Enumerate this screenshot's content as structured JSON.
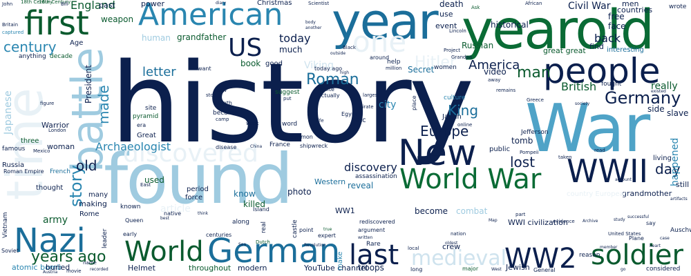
{
  "palette": {
    "navy": "#0d2b5e",
    "dark_navy": "#0b1f4d",
    "teal": "#2a86b0",
    "light_blue": "#9fcbe0",
    "pale_blue": "#e8f1f6",
    "green": "#0d6b3a",
    "dark_green": "#0a5a2e",
    "light_green": "#2e8b57"
  },
  "words": [
    {
      "text": "history"
    },
    {
      "text": "War"
    },
    {
      "text": "found"
    },
    {
      "text": "year"
    },
    {
      "text": "yearold"
    },
    {
      "text": "American"
    },
    {
      "text": "people"
    },
    {
      "text": "first"
    },
    {
      "text": "battle"
    },
    {
      "text": "New"
    },
    {
      "text": "WWII"
    },
    {
      "text": "World War"
    },
    {
      "text": "German"
    },
    {
      "text": "World"
    },
    {
      "text": "Nazi"
    },
    {
      "text": "WW2"
    },
    {
      "text": "soldier"
    },
    {
      "text": "last"
    },
    {
      "text": "Germany"
    },
    {
      "text": "discovered"
    },
    {
      "text": "medieval"
    },
    {
      "text": "US"
    },
    {
      "text": "one"
    },
    {
      "text": "Roman"
    },
    {
      "text": "Europe"
    },
    {
      "text": "King"
    },
    {
      "text": "British"
    },
    {
      "text": "America"
    },
    {
      "text": "man"
    },
    {
      "text": "Hitler"
    },
    {
      "text": "century"
    },
    {
      "text": "story"
    },
    {
      "text": "made"
    },
    {
      "text": "years ago"
    },
    {
      "text": "letter"
    },
    {
      "text": "Archaeologist"
    },
    {
      "text": "discovery"
    },
    {
      "text": "Civil War"
    },
    {
      "text": "England"
    },
    {
      "text": "day"
    },
    {
      "text": "old"
    },
    {
      "text": "lost"
    },
    {
      "text": "happened"
    },
    {
      "text": "back"
    },
    {
      "text": "army"
    },
    {
      "text": "know"
    },
    {
      "text": "killed"
    },
    {
      "text": "used"
    },
    {
      "text": "today"
    },
    {
      "text": "much"
    },
    {
      "text": "book"
    },
    {
      "text": "time"
    },
    {
      "text": "President"
    },
    {
      "text": "Japanese"
    },
    {
      "text": "Viking"
    },
    {
      "text": "historical"
    },
    {
      "text": "grandfather"
    },
    {
      "text": "human"
    },
    {
      "text": "city"
    },
    {
      "text": "reveal"
    },
    {
      "text": "photo"
    },
    {
      "text": "period"
    },
    {
      "text": "force"
    },
    {
      "text": "tomb"
    },
    {
      "text": "Western"
    },
    {
      "text": "WW1"
    },
    {
      "text": "become"
    },
    {
      "text": "combat"
    },
    {
      "text": "WWI civilization"
    },
    {
      "text": "Secret"
    },
    {
      "text": "face"
    },
    {
      "text": "free"
    },
    {
      "text": "men"
    },
    {
      "text": "countries"
    },
    {
      "text": "wrote"
    },
    {
      "text": "Russian"
    },
    {
      "text": "video"
    },
    {
      "text": "great great"
    },
    {
      "text": "interesting"
    },
    {
      "text": "find"
    },
    {
      "text": "really"
    },
    {
      "text": "fought"
    },
    {
      "text": "side"
    },
    {
      "text": "slave"
    },
    {
      "text": "living"
    },
    {
      "text": "still"
    },
    {
      "text": "grandmother"
    },
    {
      "text": "country European"
    },
    {
      "text": "past"
    },
    {
      "text": "power"
    },
    {
      "text": "death"
    },
    {
      "text": "use"
    },
    {
      "text": "event"
    },
    {
      "text": "18th Century"
    },
    {
      "text": "16th Century"
    },
    {
      "text": "Bill"
    },
    {
      "text": "Age"
    },
    {
      "text": "weapon"
    },
    {
      "text": "anything"
    },
    {
      "text": "decade"
    },
    {
      "text": "Britain"
    },
    {
      "text": "John"
    },
    {
      "text": "captured"
    },
    {
      "text": "Warrior"
    },
    {
      "text": "woman"
    },
    {
      "text": "three"
    },
    {
      "text": "famous"
    },
    {
      "text": "Russia"
    },
    {
      "text": "Roman Empire"
    },
    {
      "text": "French"
    },
    {
      "text": "thought"
    },
    {
      "text": "making"
    },
    {
      "text": "many"
    },
    {
      "text": "Rome"
    },
    {
      "text": "known"
    },
    {
      "text": "Queen"
    },
    {
      "text": "early"
    },
    {
      "text": "centuries"
    },
    {
      "text": "Helmet"
    },
    {
      "text": "throughout"
    },
    {
      "text": "modern"
    },
    {
      "text": "YouTube channel"
    },
    {
      "text": "troops"
    },
    {
      "text": "Rare"
    },
    {
      "text": "long"
    },
    {
      "text": "crew"
    },
    {
      "text": "atomic bomb"
    },
    {
      "text": "buried"
    },
    {
      "text": "leader"
    },
    {
      "text": "name"
    },
    {
      "text": "movie"
    },
    {
      "text": "recorded"
    },
    {
      "text": "Austria"
    },
    {
      "text": "Soviet"
    },
    {
      "text": "Vietnam"
    },
    {
      "text": "local"
    },
    {
      "text": "make"
    },
    {
      "text": "Jewish"
    },
    {
      "text": "major"
    },
    {
      "text": "West"
    },
    {
      "text": "General"
    },
    {
      "text": "reason"
    },
    {
      "text": "considered"
    },
    {
      "text": "go"
    },
    {
      "text": "Plane"
    },
    {
      "text": "Auschwitz"
    },
    {
      "text": "say"
    },
    {
      "text": "case"
    },
    {
      "text": "era"
    },
    {
      "text": "Great"
    },
    {
      "text": "pyramid"
    },
    {
      "text": "public"
    },
    {
      "text": "Japan"
    },
    {
      "text": "etc"
    },
    {
      "text": "Egypt"
    },
    {
      "text": "pirate"
    },
    {
      "text": "place"
    },
    {
      "text": "largest"
    },
    {
      "text": "actually"
    },
    {
      "text": "white"
    },
    {
      "text": "suggest"
    },
    {
      "text": "put"
    },
    {
      "text": "show"
    },
    {
      "text": "became"
    },
    {
      "text": "camp"
    },
    {
      "text": "month"
    },
    {
      "text": "stop"
    },
    {
      "text": "site"
    },
    {
      "text": "want"
    },
    {
      "text": "good"
    },
    {
      "text": "today ago"
    },
    {
      "text": "around"
    },
    {
      "text": "women"
    },
    {
      "text": "help"
    },
    {
      "text": "million"
    },
    {
      "text": "high"
    },
    {
      "text": "outside"
    },
    {
      "text": "Black"
    },
    {
      "text": "Lincoln"
    },
    {
      "text": "Project"
    },
    {
      "text": "Grandpa"
    },
    {
      "text": "culture"
    },
    {
      "text": "away"
    },
    {
      "text": "remains"
    },
    {
      "text": "Greece"
    },
    {
      "text": "society"
    },
    {
      "text": "figure"
    },
    {
      "text": "London"
    },
    {
      "text": "Mexico"
    },
    {
      "text": "disease"
    },
    {
      "text": "China"
    },
    {
      "text": "France"
    },
    {
      "text": "shipwreck"
    },
    {
      "text": "common"
    },
    {
      "text": "assassination"
    },
    {
      "text": "word"
    },
    {
      "text": "week"
    },
    {
      "text": "life"
    },
    {
      "text": "online"
    },
    {
      "text": "Jefferson"
    },
    {
      "text": "Pompeii"
    },
    {
      "text": "read"
    },
    {
      "text": "taken"
    },
    {
      "text": "East"
    },
    {
      "text": "along"
    },
    {
      "text": "Island"
    },
    {
      "text": "real"
    },
    {
      "text": "castle"
    },
    {
      "text": "point"
    },
    {
      "text": "true"
    },
    {
      "text": "expert"
    },
    {
      "text": "Dutch"
    },
    {
      "text": "Sea"
    },
    {
      "text": "Revolution"
    },
    {
      "text": "argument"
    },
    {
      "text": "rediscovered"
    },
    {
      "text": "written"
    },
    {
      "text": "nation"
    },
    {
      "text": "oldest"
    },
    {
      "text": "part"
    },
    {
      "text": "Map"
    },
    {
      "text": "evidence"
    },
    {
      "text": "Archive"
    },
    {
      "text": "study"
    },
    {
      "text": "United States"
    },
    {
      "text": "member"
    },
    {
      "text": "heart"
    },
    {
      "text": "successful"
    },
    {
      "text": "artifacts"
    },
    {
      "text": "article"
    },
    {
      "text": "native"
    },
    {
      "text": "think"
    },
    {
      "text": "best"
    },
    {
      "text": "Ask"
    },
    {
      "text": "African"
    },
    {
      "text": "Scientist"
    },
    {
      "text": "diary"
    },
    {
      "text": "Christmas"
    },
    {
      "text": "body"
    },
    {
      "text": "another"
    },
    {
      "text": "existed"
    },
    {
      "text": "account"
    },
    {
      "text": "Native American"
    },
    {
      "text": "Vietnam War"
    }
  ]
}
